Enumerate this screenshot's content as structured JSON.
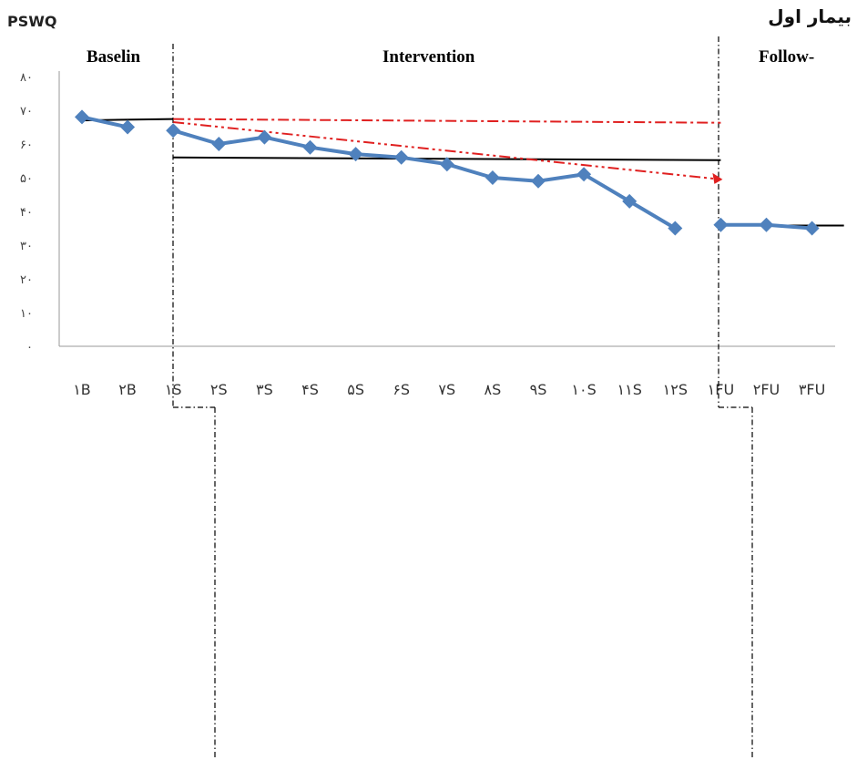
{
  "patient_label": "بیمار اول",
  "chart_data": {
    "type": "line",
    "ylabel": "PSWQ",
    "ylim": [
      0,
      80
    ],
    "y_ticks": [
      "۰",
      "۱۰",
      "۲۰",
      "۳۰",
      "۴۰",
      "۵۰",
      "۶۰",
      "۷۰",
      "۸۰"
    ],
    "categories": [
      "۱B",
      "۲B",
      "۱S",
      "۲S",
      "۳S",
      "۴S",
      "۵S",
      "۶S",
      "۷S",
      "۸S",
      "۹S",
      "۱۰S",
      "۱۱S",
      "۱۲S",
      "۱FU",
      "۲FU",
      "۳FU"
    ],
    "phases": [
      "Baselin",
      "Intervention",
      "Follow-"
    ],
    "series": [
      {
        "color": "#4F81BD",
        "segments": [
          {
            "phase": "Baselin",
            "x": [
              0,
              1
            ],
            "values": [
              68,
              65
            ]
          },
          {
            "phase": "Intervention",
            "x": [
              2,
              3,
              4,
              5,
              6,
              7,
              8,
              9,
              10,
              11,
              12,
              13
            ],
            "values": [
              64,
              60,
              62,
              59,
              57,
              56,
              54,
              50,
              49,
              51,
              43,
              35
            ]
          },
          {
            "phase": "Follow-",
            "x": [
              14,
              15,
              16
            ],
            "values": [
              36,
              36,
              35
            ]
          }
        ]
      }
    ],
    "mean_lines": [
      {
        "color": "#000000",
        "x": [
          0,
          2
        ],
        "values": [
          67,
          67.4
        ]
      },
      {
        "color": "#000000",
        "x": [
          2,
          14
        ],
        "values": [
          56,
          55.2
        ]
      },
      {
        "color": "#000000",
        "x": [
          14,
          16.7
        ],
        "values": [
          35.8,
          35.8
        ]
      }
    ],
    "trend_lines": [
      {
        "color": "#E02020",
        "style": "dash-dot",
        "x": [
          2,
          14
        ],
        "values": [
          67.4,
          66.3
        ]
      },
      {
        "color": "#E02020",
        "style": "dash-dot-dot",
        "x": [
          2,
          14
        ],
        "values": [
          66.5,
          49.5
        ]
      }
    ]
  }
}
